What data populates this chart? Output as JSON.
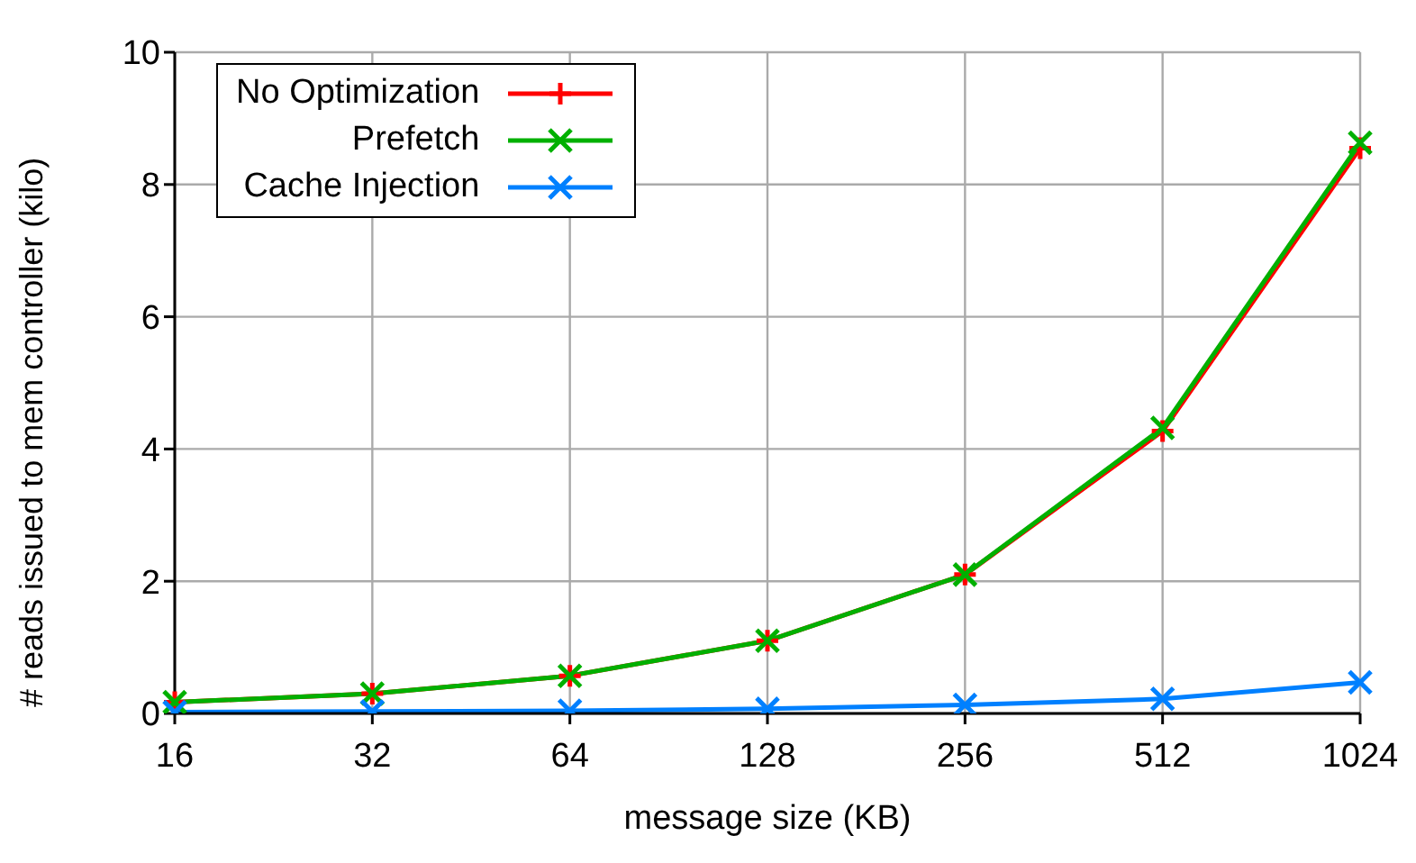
{
  "chart_data": {
    "type": "line",
    "xlabel": "message size (KB)",
    "ylabel": "# reads issued to mem controller (kilo)",
    "categories": [
      "16",
      "32",
      "64",
      "128",
      "256",
      "512",
      "1024"
    ],
    "series": [
      {
        "name": "No Optimization",
        "color": "#ff0000",
        "marker": "plus",
        "values": [
          0.17,
          0.3,
          0.57,
          1.1,
          2.1,
          4.27,
          8.55
        ]
      },
      {
        "name": "Prefetch",
        "color": "#00b000",
        "marker": "cross",
        "values": [
          0.17,
          0.3,
          0.57,
          1.1,
          2.1,
          4.32,
          8.63
        ]
      },
      {
        "name": "Cache Injection",
        "color": "#0080ff",
        "marker": "cross",
        "values": [
          0.02,
          0.03,
          0.04,
          0.07,
          0.13,
          0.22,
          0.47
        ]
      }
    ],
    "ylim": [
      0,
      10
    ],
    "yticks": [
      0,
      2,
      4,
      6,
      8,
      10
    ],
    "grid": true,
    "legend": "top left"
  }
}
